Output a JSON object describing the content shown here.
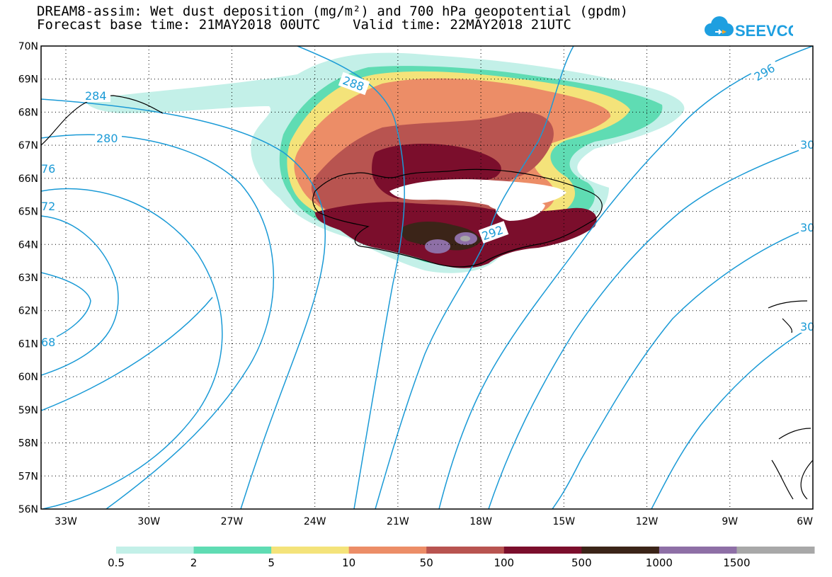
{
  "header": {
    "title_line1": "DREAM8-assim: Wet dust deposition (mg/m²) and 700 hPa geopotential (gpdm)",
    "title_line2": "Forecast base time: 21MAY2018 00UTC    Valid time: 22MAY2018 21UTC"
  },
  "logo": {
    "text": "SEEVCCC",
    "icon": "cloud-icon",
    "color": "#1e9fe0",
    "accent": "#f5a623"
  },
  "map": {
    "lat_labels": [
      "70N",
      "69N",
      "68N",
      "67N",
      "66N",
      "65N",
      "64N",
      "63N",
      "62N",
      "61N",
      "60N",
      "59N",
      "58N",
      "57N",
      "56N"
    ],
    "lon_labels": [
      "33W",
      "30W",
      "27W",
      "24W",
      "21W",
      "18W",
      "15W",
      "12W",
      "9W",
      "6W"
    ],
    "contour_color": "#1a9ad6",
    "contour_labels": [
      "284",
      "288",
      "280",
      "76",
      "72",
      "68",
      "292",
      "296",
      "30",
      "30",
      "30"
    ]
  },
  "legend": {
    "colors": [
      "#c3f0e8",
      "#5fdcb3",
      "#f4e37a",
      "#ec8d67",
      "#b85450",
      "#7b0e2c",
      "#3b2418",
      "#8e6fa6",
      "#a8a8a8"
    ],
    "labels": [
      "0.5",
      "2",
      "5",
      "10",
      "50",
      "100",
      "500",
      "1000",
      "1500"
    ]
  }
}
